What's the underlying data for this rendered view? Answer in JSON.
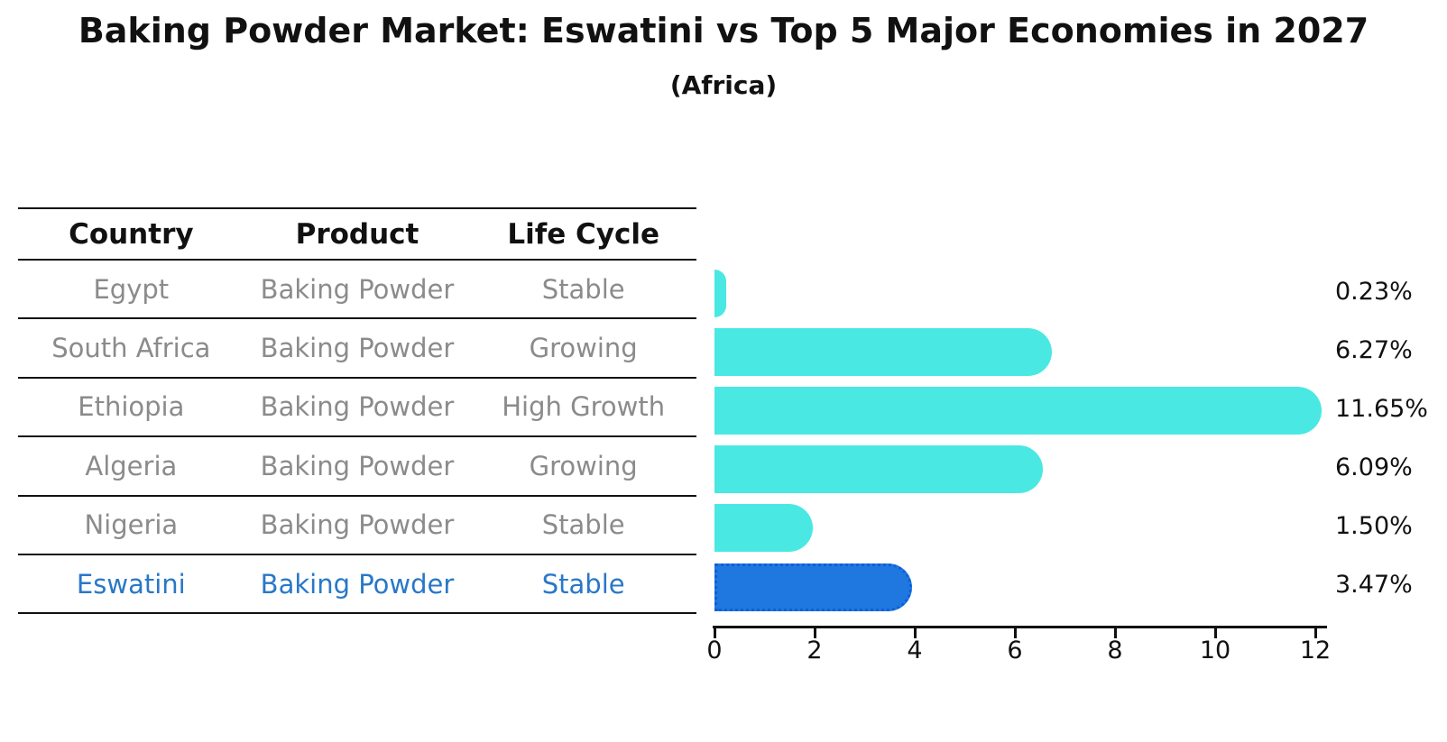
{
  "title": "Baking Powder Market: Eswatini vs Top 5 Major Economies in 2027",
  "subtitle": "(Africa)",
  "table": {
    "headers": [
      "Country",
      "Product",
      "Life Cycle"
    ],
    "rows": [
      {
        "country": "Egypt",
        "product": "Baking Powder",
        "life_cycle": "Stable"
      },
      {
        "country": "South Africa",
        "product": "Baking Powder",
        "life_cycle": "Growing"
      },
      {
        "country": "Ethiopia",
        "product": "Baking Powder",
        "life_cycle": "High Growth"
      },
      {
        "country": "Algeria",
        "product": "Baking Powder",
        "life_cycle": "Growing"
      },
      {
        "country": "Nigeria",
        "product": "Baking Powder",
        "life_cycle": "Stable"
      },
      {
        "country": "Eswatini",
        "product": "Baking Powder",
        "life_cycle": "Stable"
      }
    ],
    "highlighted_row": "Eswatini"
  },
  "chart_data": {
    "type": "bar",
    "orientation": "horizontal",
    "title": "Baking Powder Market: Eswatini vs Top 5 Major Economies in 2027",
    "subtitle": "(Africa)",
    "categories": [
      "Egypt",
      "South Africa",
      "Ethiopia",
      "Algeria",
      "Nigeria",
      "Eswatini"
    ],
    "values": [
      0.23,
      6.27,
      11.65,
      6.09,
      1.5,
      3.47
    ],
    "value_labels": [
      "0.23%",
      "6.27%",
      "11.65%",
      "6.09%",
      "1.50%",
      "3.47%"
    ],
    "highlight_index": 5,
    "xlim": [
      0,
      12
    ],
    "x_ticks": [
      0,
      2,
      4,
      6,
      8,
      10,
      12
    ],
    "x_tick_labels": [
      "0",
      "2",
      "4",
      "6",
      "8",
      "10",
      "12"
    ],
    "grid": false,
    "legend": false
  },
  "colors": {
    "bar": "#4AE8E2",
    "highlight_bar": "#1E78E0",
    "highlight_bar_border": "#0E5FD8",
    "highlight_text": "#2878C8",
    "table_text": "#8B8B8B",
    "axis": "#111111",
    "background": "#FFFFFF"
  }
}
